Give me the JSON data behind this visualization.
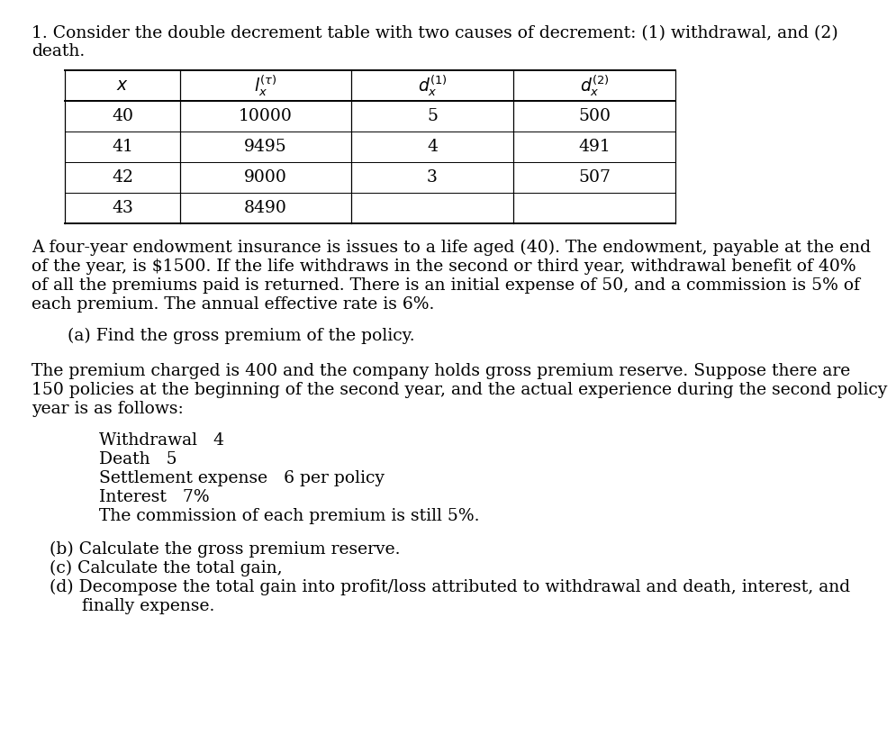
{
  "title_line1": "1. Consider the double decrement table with two causes of decrement: (1) withdrawal, and (2)",
  "title_line2": "death.",
  "table_data": [
    [
      "40",
      "10000",
      "5",
      "500"
    ],
    [
      "41",
      "9495",
      "4",
      "491"
    ],
    [
      "42",
      "9000",
      "3",
      "507"
    ],
    [
      "43",
      "8490",
      "",
      ""
    ]
  ],
  "para1": "A four-year endowment insurance is issues to a life aged (40). The endowment, payable at the end of the year, is $1500. If the life withdraws in the second or third year, withdrawal benefit of 40% of all the premiums paid is returned. There is an initial expense of 50, and a commission is 5% of each premium. The annual effective rate is 6%.",
  "para2_a": "(a) Find the gross premium of the policy.",
  "para3": "The premium charged is 400 and the company holds gross premium reserve. Suppose there are 150 policies at the beginning of the second year, and the actual experience during the second policy year is as follows:",
  "indented_lines": [
    "Withdrawal   4",
    "Death   5",
    "Settlement expense   6 per policy",
    "Interest   7%",
    "The commission of each premium is still 5%."
  ],
  "para4_b": "(b) Calculate the gross premium reserve.",
  "para4_c": "(c) Calculate the total gain,",
  "para4_d_line1": "(d) Decompose the total gain into profit/loss attributed to withdrawal and death, interest, and",
  "para4_d_line2": "      finally expense.",
  "bg_color": "#ffffff",
  "text_color": "#000000",
  "font_size": 13.5
}
